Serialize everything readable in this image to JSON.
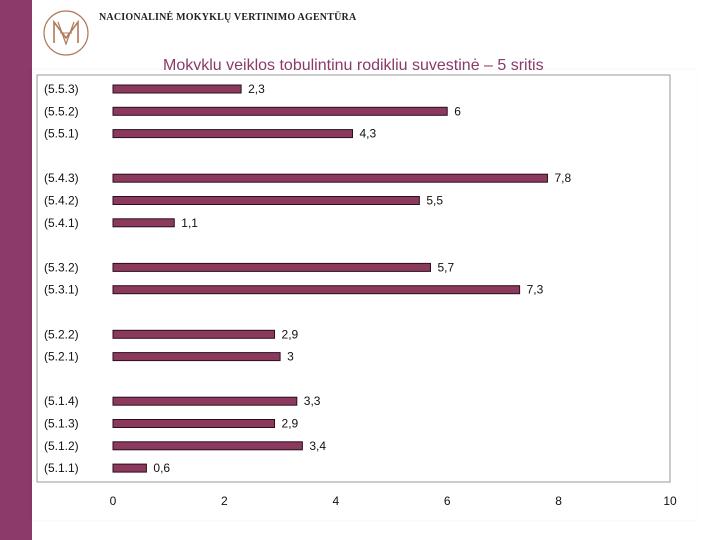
{
  "header": {
    "agency_name": "NACIONALINĖ MOKYKLŲ VERTINIMO AGENTŪRA",
    "logo_icon": "nmva-monogram-icon",
    "slide_title": "Mokyklų veiklos tobulintinų rodiklių suvestinė – 5 sritis"
  },
  "colors": {
    "accent": "#8b3a6a",
    "bar_fill": "#8b3a5e",
    "bar_stroke": "#2a0f1d"
  },
  "chart_data": {
    "type": "bar",
    "orientation": "horizontal",
    "title": "Mokyklų veiklos tobulintinų rodiklių suvestinė – 5 sritis",
    "xlabel": "",
    "ylabel": "",
    "xlim": [
      0,
      10
    ],
    "xticks": [
      0,
      2,
      4,
      6,
      8,
      10
    ],
    "grid": false,
    "categories": [
      "(5.5.3)",
      "(5.5.2)",
      "(5.5.1)",
      "(5.4.3)",
      "(5.4.2)",
      "(5.4.1)",
      "(5.3.2)",
      "(5.3.1)",
      "(5.2.2)",
      "(5.2.1)",
      "(5.1.4)",
      "(5.1.3)",
      "(5.1.2)",
      "(5.1.1)"
    ],
    "values": [
      2.3,
      6,
      4.3,
      7.8,
      5.5,
      1.1,
      5.7,
      7.3,
      2.9,
      3,
      3.3,
      2.9,
      3.4,
      0.6
    ],
    "value_labels": [
      "2,3",
      "6",
      "4,3",
      "7,8",
      "5,5",
      "1,1",
      "5,7",
      "7,3",
      "2,9",
      "3",
      "3,3",
      "2,9",
      "3,4",
      "0,6"
    ],
    "groups": [
      3,
      3,
      2,
      2,
      4
    ]
  }
}
